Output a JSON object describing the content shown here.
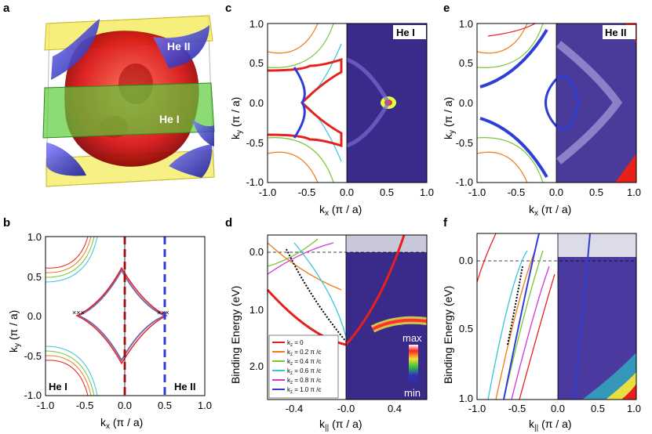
{
  "figure": {
    "panels": [
      {
        "letter": "a",
        "labels": {
          "he2": "He II",
          "he1": "He I"
        }
      },
      {
        "letter": "b",
        "xlabel": "k",
        "xsub": "x",
        "xunit": " (π / a)",
        "ylabel": "k",
        "ysub": "y",
        "yunit": " (π / a)",
        "xticks": [
          "-1.0",
          "-0.5",
          "0.0",
          "0.5",
          "1.0"
        ],
        "yticks": [
          "1.0",
          "0.5",
          "0.0",
          "-0.5",
          "-1.0"
        ],
        "labels": {
          "left": "He I",
          "right": "He II"
        }
      },
      {
        "letter": "c",
        "xlabel": "k",
        "xsub": "x",
        "xunit": " (π / a)",
        "ylabel": "k",
        "ysub": "y",
        "yunit": " (π / a)",
        "xticks": [
          "-1.0",
          "-0.5",
          "0.0",
          "0.5",
          "1.0"
        ],
        "yticks": [
          "1.0",
          "0.5",
          "0.0",
          "-0.5",
          "-1.0"
        ],
        "tag": "He I"
      },
      {
        "letter": "d",
        "xlabel": "k",
        "xsub": "||",
        "xunit": " (π / a)",
        "ylabel": "Binding Energy (eV)",
        "xticks": [
          "-0.4",
          "-0.0",
          "0.4"
        ],
        "yticks": [
          "0.0",
          "1.0",
          "2.0"
        ],
        "colorbar": {
          "max": "max",
          "min": "min"
        }
      },
      {
        "letter": "e",
        "xlabel": "k",
        "xsub": "x",
        "xunit": " (π / a)",
        "ylabel": "k",
        "ysub": "y",
        "yunit": " (π / a)",
        "xticks": [
          "-1.0",
          "-0.5",
          "0.0",
          "0.5",
          "1.0"
        ],
        "yticks": [
          "1.0",
          "0.5",
          "0.0",
          "-0.5",
          "-1.0"
        ],
        "tag": "He II"
      },
      {
        "letter": "f",
        "xlabel": "k",
        "xsub": "||",
        "xunit": " (π / a)",
        "ylabel": "Binding Energy (eV)",
        "xticks": [
          "-1.0",
          "-0.5",
          "0.0",
          "0.5",
          "1.0"
        ],
        "yticks": [
          "0.0",
          "0.5",
          "1.0"
        ]
      }
    ],
    "legend": [
      {
        "label": "k",
        "sub": "z",
        "value": " = 0",
        "color": "#e8201c"
      },
      {
        "label": "k",
        "sub": "z",
        "value": " = 0.2 π /c",
        "color": "#f07b17"
      },
      {
        "label": "k",
        "sub": "z",
        "value": " = 0.4 π /c",
        "color": "#79c637"
      },
      {
        "label": "k",
        "sub": "z",
        "value": " = 0.6 π /c",
        "color": "#34c6dd"
      },
      {
        "label": "k",
        "sub": "z",
        "value": " = 0.8 π /c",
        "color": "#d334d9"
      },
      {
        "label": "k",
        "sub": "z",
        "value": " = 1.0 π /c",
        "color": "#2f3fd6"
      }
    ],
    "colors": {
      "red": "#e8201c",
      "orange": "#f07b17",
      "green": "#79c637",
      "cyan": "#34c6dd",
      "magenta": "#d334d9",
      "blue": "#2f3fd6",
      "arpes": "#3a2a8a"
    }
  }
}
